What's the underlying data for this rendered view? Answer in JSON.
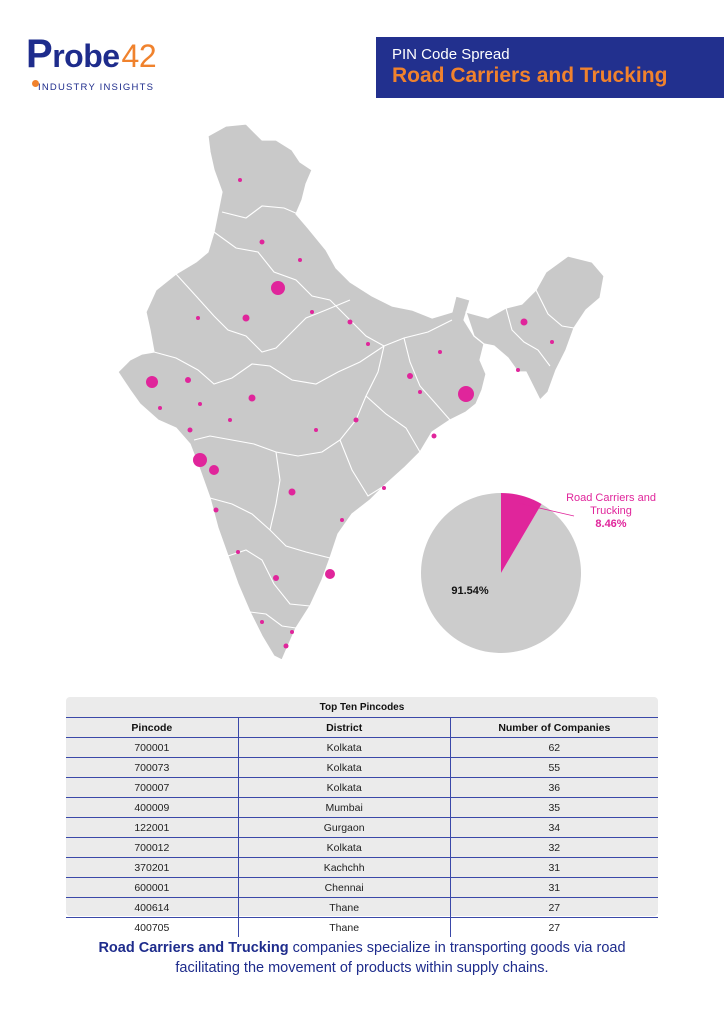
{
  "logo": {
    "p": "P",
    "robe": "robe",
    "num": "42",
    "subtitle": "INDUSTRY INSIGHTS"
  },
  "banner": {
    "subtitle": "PIN Code Spread",
    "title": "Road Carriers and Trucking"
  },
  "colors": {
    "accent": "#e0259b",
    "brand_blue": "#22308e",
    "brand_orange": "#f0822d",
    "map_fill": "#c9c9c9"
  },
  "pie": {
    "segments": [
      {
        "label": "Road Carriers and Trucking",
        "value": 8.46,
        "color": "#e0259b"
      },
      {
        "label": "",
        "value": 91.54,
        "color": "#cccccc"
      }
    ],
    "callout_label": "Road Carriers and Trucking",
    "callout_value": "8.46%",
    "other_value": "91.54%"
  },
  "table": {
    "title": "Top Ten Pincodes",
    "headers": [
      "Pincode",
      "District",
      "Number of Companies"
    ],
    "rows": [
      [
        "700001",
        "Kolkata",
        "62"
      ],
      [
        "700073",
        "Kolkata",
        "55"
      ],
      [
        "700007",
        "Kolkata",
        "36"
      ],
      [
        "400009",
        "Mumbai",
        "35"
      ],
      [
        "122001",
        "Gurgaon",
        "34"
      ],
      [
        "700012",
        "Kolkata",
        "32"
      ],
      [
        "370201",
        "Kachchh",
        "31"
      ],
      [
        "600001",
        "Chennai",
        "31"
      ],
      [
        "400614",
        "Thane",
        "27"
      ],
      [
        "400705",
        "Thane",
        "27"
      ]
    ]
  },
  "caption": {
    "bold": "Road Carriers and Trucking",
    "line1_rest": " companies specialize in transporting goods via road",
    "line2": "facilitating the movement of products within supply chains."
  }
}
